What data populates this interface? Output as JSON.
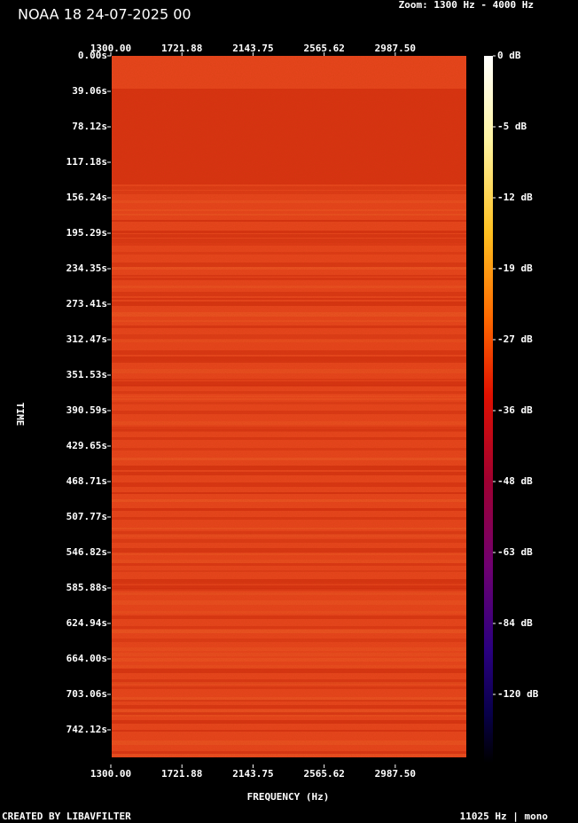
{
  "chart_data": {
    "type": "spectrogram",
    "title": "NOAA 18 24-07-2025 00",
    "subtitle": "Zoom: 1300 Hz - 4000 Hz",
    "x_label": "FREQUENCY (Hz)",
    "y_label": "TIME",
    "footer_left": "CREATED BY LIBAVFILTER",
    "footer_right": "11025 Hz | mono",
    "xlim": [
      1300,
      3409
    ],
    "xticks": [
      {
        "value": 1300,
        "label": "1300.00"
      },
      {
        "value": 1721.88,
        "label": "1721.88"
      },
      {
        "value": 2143.75,
        "label": "2143.75"
      },
      {
        "value": 2565.62,
        "label": "2565.62"
      },
      {
        "value": 2987.5,
        "label": "2987.50"
      }
    ],
    "ylim": [
      0,
      773.4
    ],
    "yticks": [
      {
        "value": 0,
        "label": "0.00s"
      },
      {
        "value": 39.06,
        "label": "39.06s"
      },
      {
        "value": 78.12,
        "label": "78.12s"
      },
      {
        "value": 117.18,
        "label": "117.18s"
      },
      {
        "value": 156.24,
        "label": "156.24s"
      },
      {
        "value": 195.29,
        "label": "195.29s"
      },
      {
        "value": 234.35,
        "label": "234.35s"
      },
      {
        "value": 273.41,
        "label": "273.41s"
      },
      {
        "value": 312.47,
        "label": "312.47s"
      },
      {
        "value": 351.53,
        "label": "351.53s"
      },
      {
        "value": 390.59,
        "label": "390.59s"
      },
      {
        "value": 429.65,
        "label": "429.65s"
      },
      {
        "value": 468.71,
        "label": "468.71s"
      },
      {
        "value": 507.77,
        "label": "507.77s"
      },
      {
        "value": 546.82,
        "label": "546.82s"
      },
      {
        "value": 585.88,
        "label": "585.88s"
      },
      {
        "value": 624.94,
        "label": "624.94s"
      },
      {
        "value": 664,
        "label": "664.00s"
      },
      {
        "value": 703.06,
        "label": "703.06s"
      },
      {
        "value": 742.12,
        "label": "742.12s"
      }
    ],
    "colorbar_ticks": [
      {
        "value": 0,
        "label": "0 dB"
      },
      {
        "value": -5,
        "label": "-5 dB"
      },
      {
        "value": -12,
        "label": "-12 dB"
      },
      {
        "value": -19,
        "label": "-19 dB"
      },
      {
        "value": -27,
        "label": "-27 dB"
      },
      {
        "value": -36,
        "label": "-36 dB"
      },
      {
        "value": -48,
        "label": "-48 dB"
      },
      {
        "value": -63,
        "label": "-63 dB"
      },
      {
        "value": -84,
        "label": "-84 dB"
      },
      {
        "value": -120,
        "label": "-120 dB"
      }
    ]
  }
}
